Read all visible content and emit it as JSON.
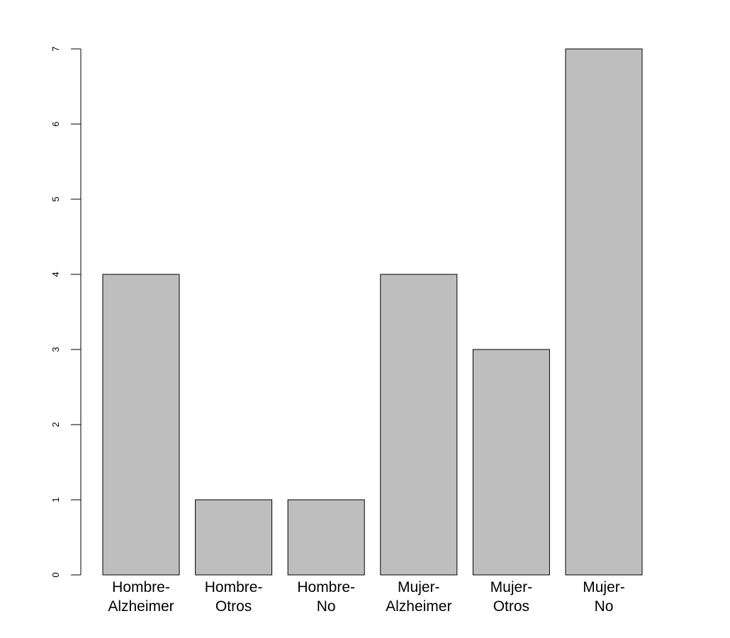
{
  "chart_data": {
    "type": "bar",
    "categories": [
      [
        "Hombre-",
        "Alzheimer"
      ],
      [
        "Hombre-",
        "Otros"
      ],
      [
        "Hombre-",
        "No"
      ],
      [
        "Mujer-",
        "Alzheimer"
      ],
      [
        "Mujer-",
        "Otros"
      ],
      [
        "Mujer-",
        "No"
      ]
    ],
    "values": [
      4,
      1,
      1,
      4,
      3,
      7
    ],
    "ylim": [
      0,
      7
    ],
    "yticks": [
      0,
      1,
      2,
      3,
      4,
      5,
      6,
      7
    ],
    "bar_color": "#bebebe",
    "title": "",
    "xlabel": "",
    "ylabel": "",
    "grid": false,
    "legend": "none"
  }
}
